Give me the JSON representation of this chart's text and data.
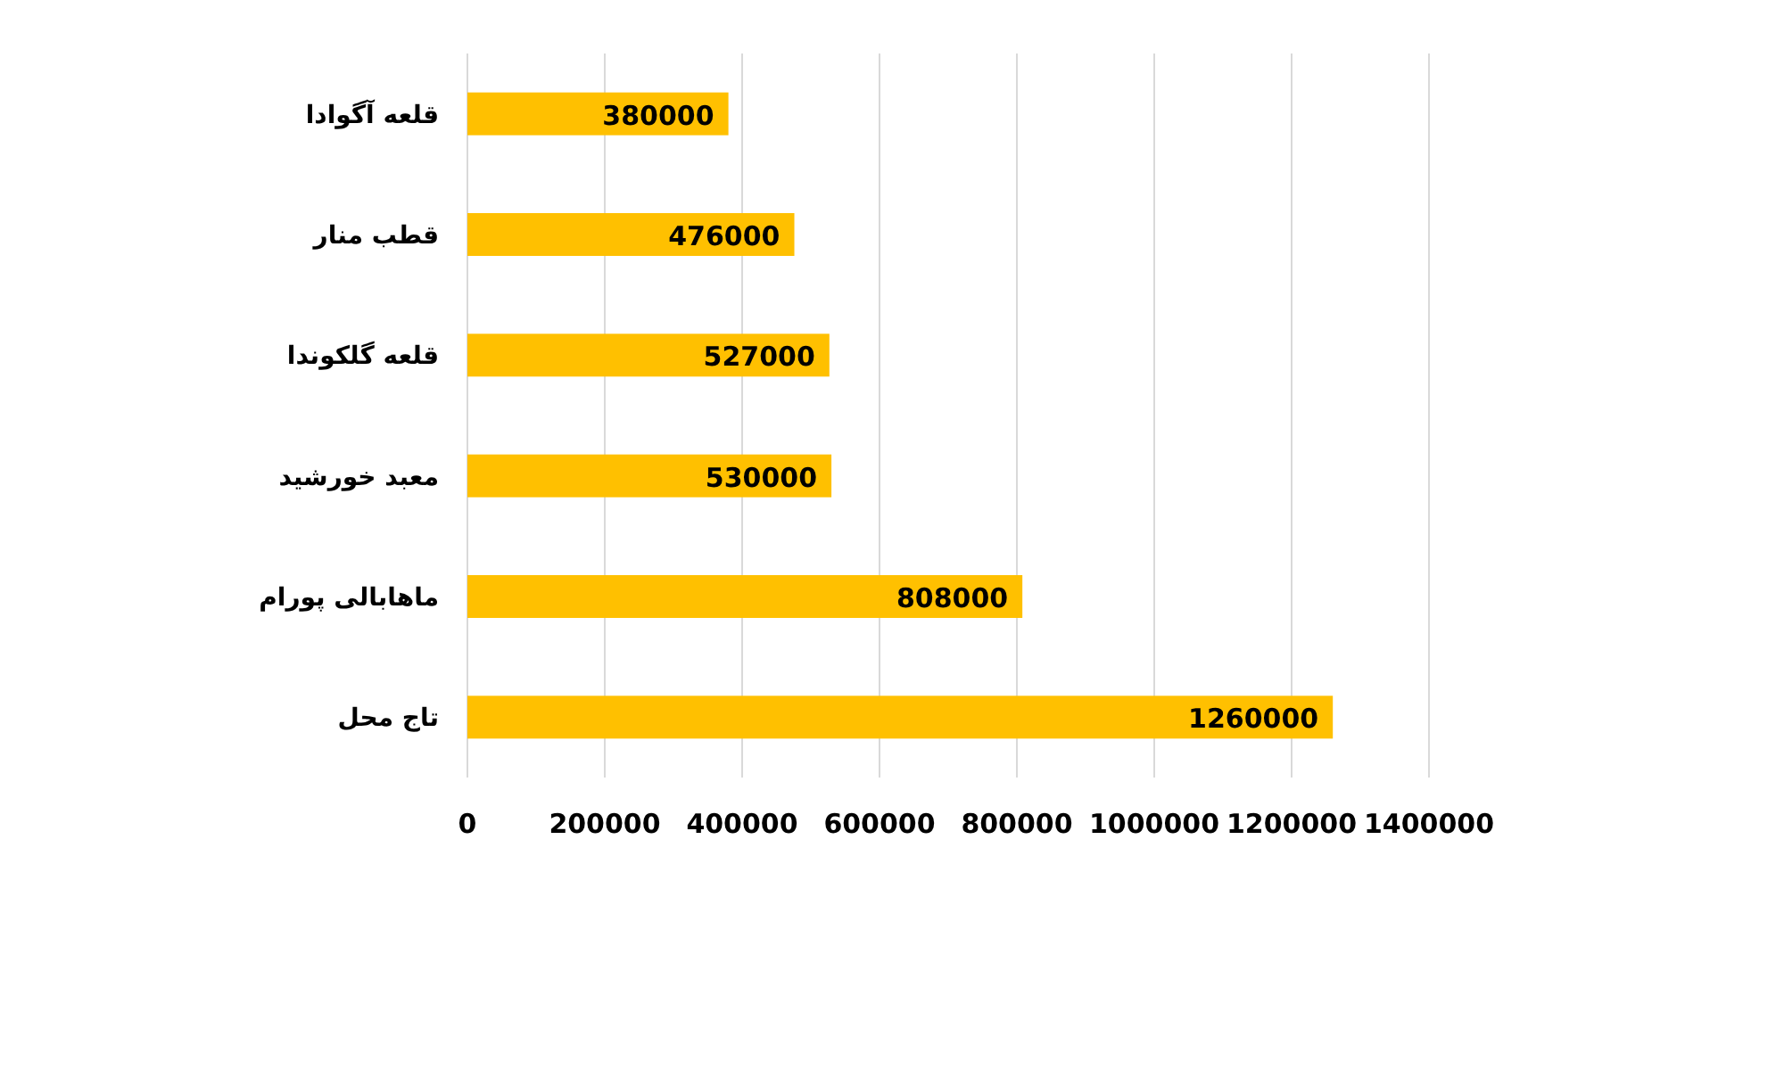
{
  "chart_data": {
    "type": "bar",
    "orientation": "horizontal",
    "categories": [
      "قلعه آگوادا",
      "قطب منار",
      "قلعه گلکوندا",
      "معبد خورشید",
      "ماهابالی پورام",
      "تاج محل"
    ],
    "values": [
      380000,
      476000,
      527000,
      530000,
      808000,
      1260000
    ],
    "color": "#ffc000",
    "xlim": [
      0,
      1400000
    ],
    "xticks": [
      0,
      200000,
      400000,
      600000,
      800000,
      1000000,
      1200000,
      1400000
    ],
    "grid": "x",
    "data_labels": true
  }
}
